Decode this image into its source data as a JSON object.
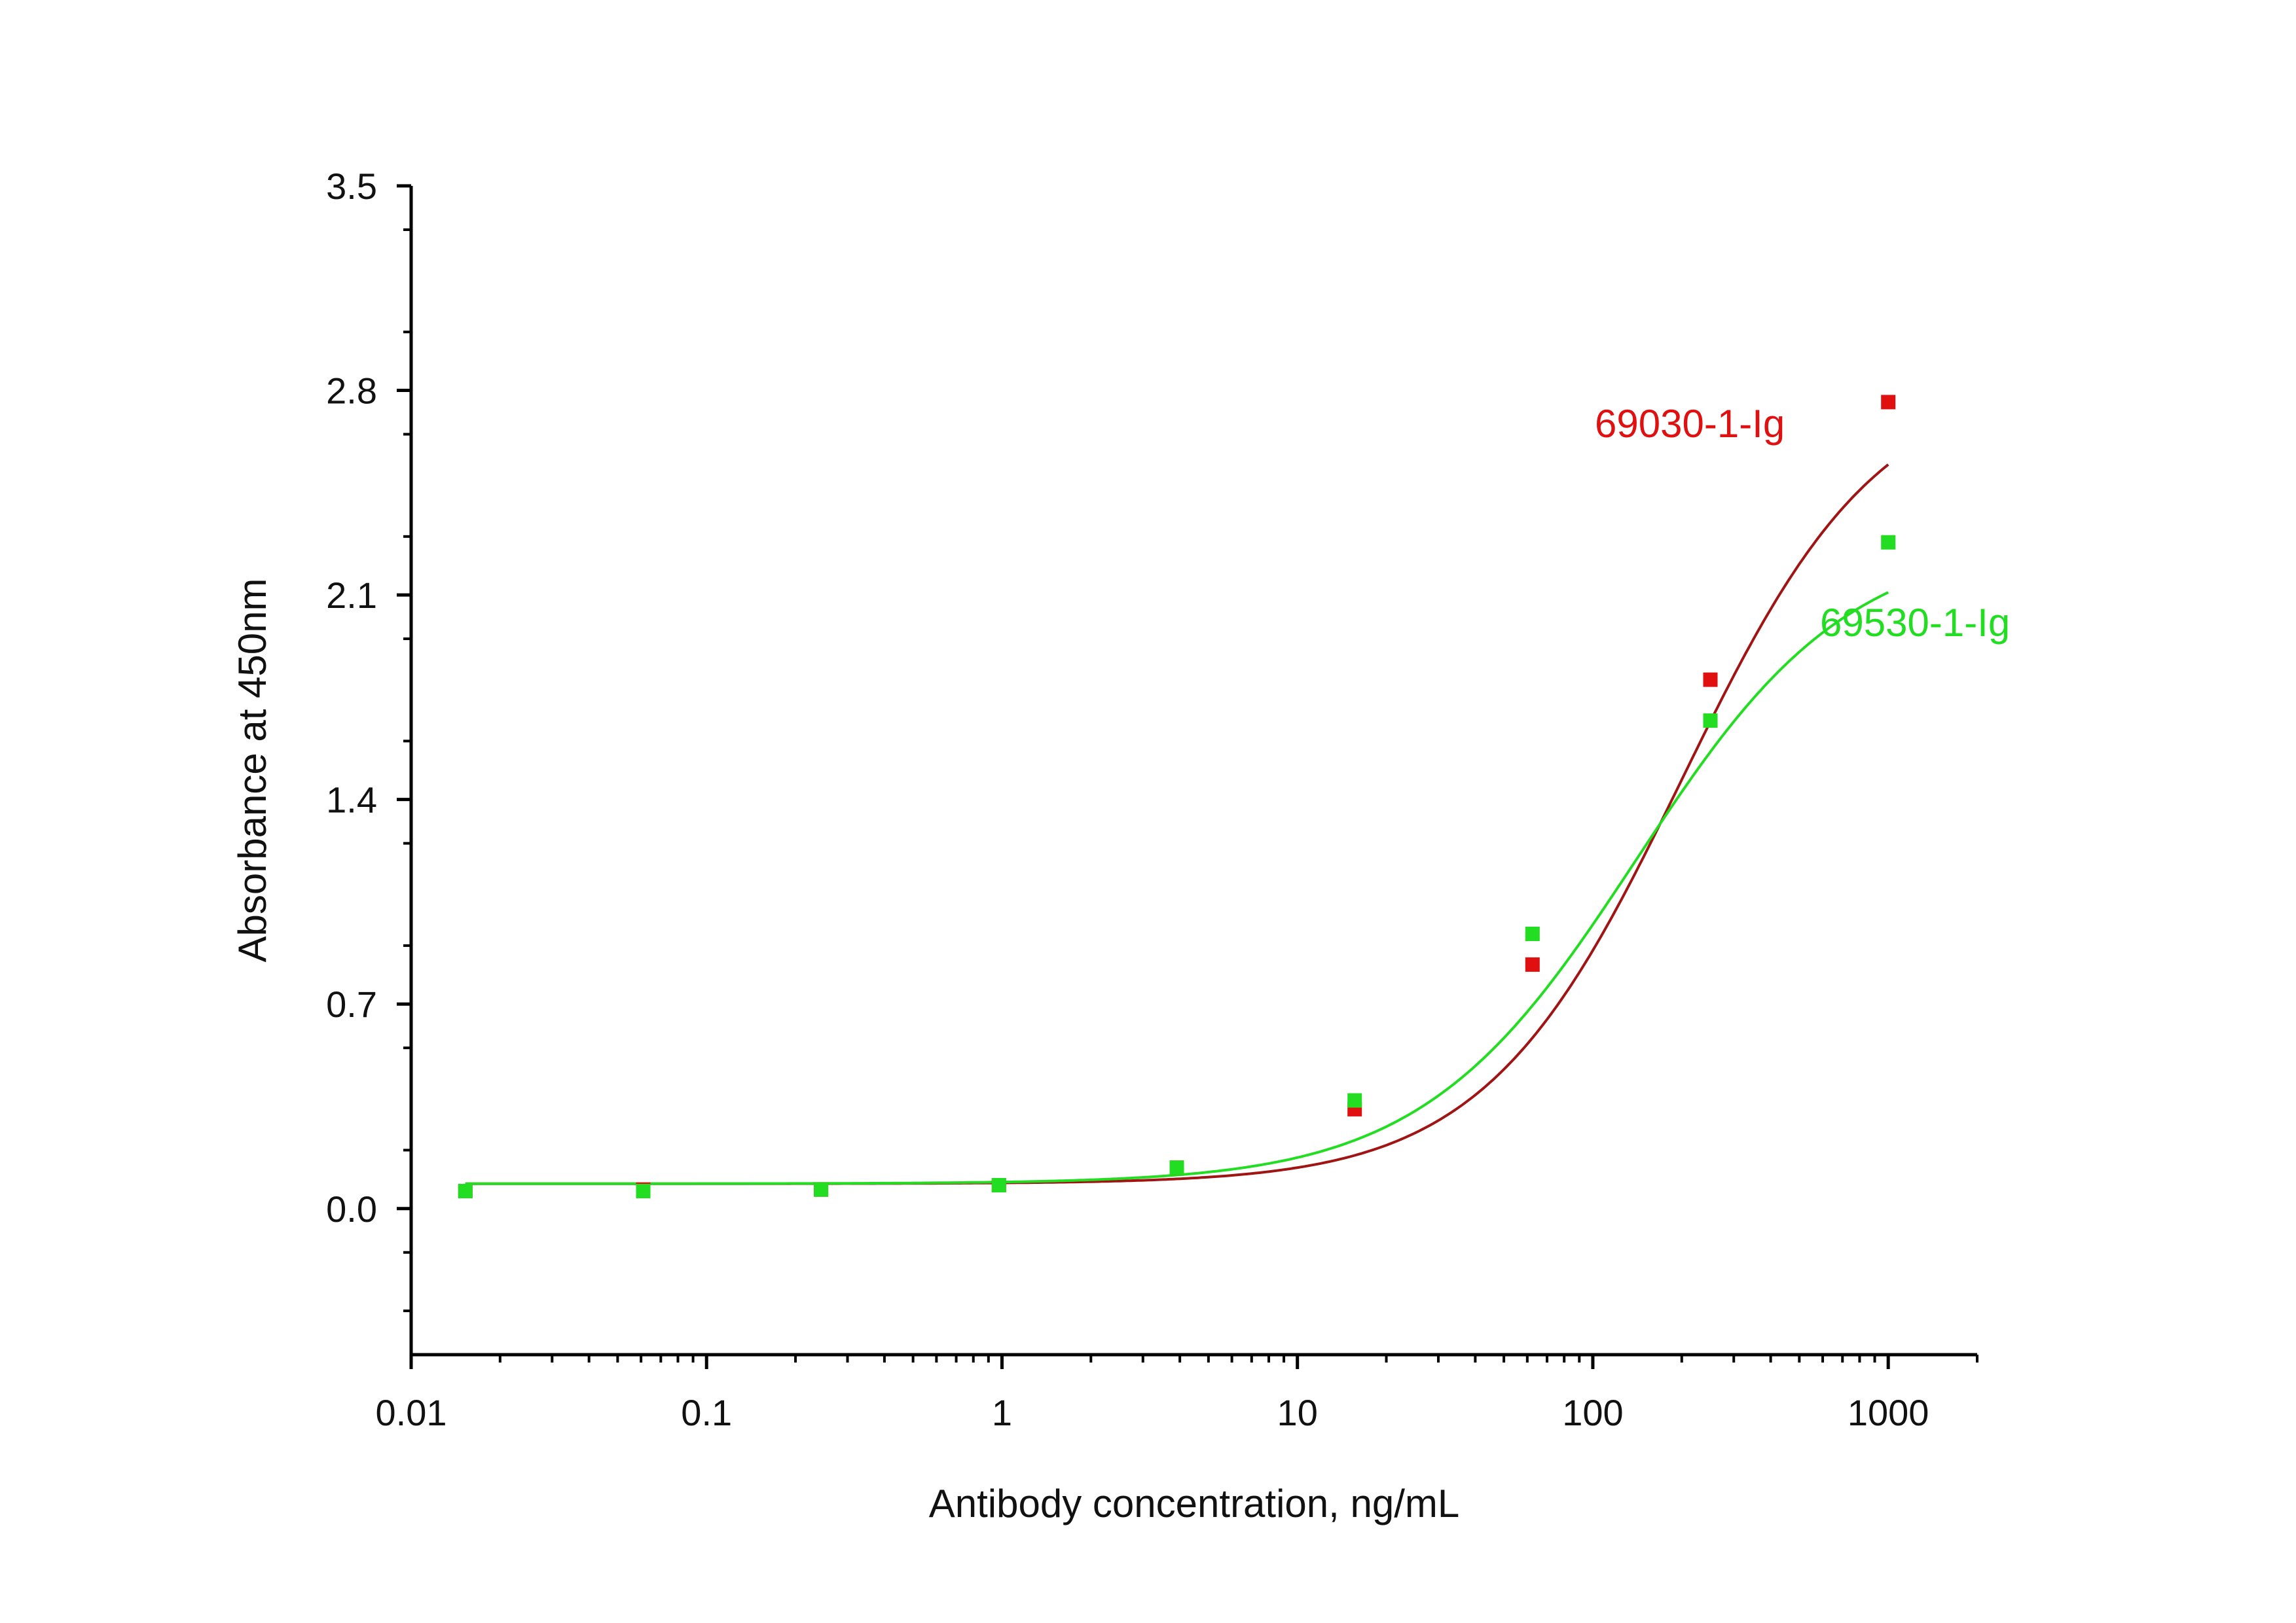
{
  "chart_data": {
    "type": "scatter",
    "title": "",
    "xlabel": "Antibody concentration, ng/mL",
    "ylabel": "Absorbance at 450nm",
    "x_scale": "log",
    "xlim": [
      0.01,
      2000
    ],
    "ylim": [
      -0.5,
      3.5
    ],
    "x_ticks": [
      0.01,
      0.1,
      1,
      10,
      100,
      1000
    ],
    "x_tick_labels": [
      "0.01",
      "0.1",
      "1",
      "10",
      "100",
      "1000"
    ],
    "y_ticks": [
      0.0,
      0.7,
      1.4,
      2.1,
      2.8,
      3.5
    ],
    "y_tick_labels": [
      "0.0",
      "0.7",
      "1.4",
      "2.1",
      "2.8",
      "3.5"
    ],
    "grid": false,
    "legend": "labels next to curves",
    "series": [
      {
        "name": "69030-1-Ig",
        "color": "#e01010",
        "curve_color": "#a01414",
        "x": [
          0.01526,
          0.06104,
          0.2441,
          0.9766,
          3.906,
          15.625,
          62.5,
          250,
          1000
        ],
        "y": [
          0.06,
          0.065,
          0.065,
          0.08,
          0.14,
          0.34,
          0.835,
          1.81,
          2.76
        ]
      },
      {
        "name": "69530-1-Ig",
        "color": "#22dd22",
        "curve_color": "#22dd22",
        "x": [
          0.01526,
          0.06104,
          0.2441,
          0.9766,
          3.906,
          15.625,
          62.5,
          250,
          1000
        ],
        "y": [
          0.06,
          0.06,
          0.065,
          0.08,
          0.14,
          0.37,
          0.94,
          1.67,
          2.28
        ]
      }
    ]
  }
}
